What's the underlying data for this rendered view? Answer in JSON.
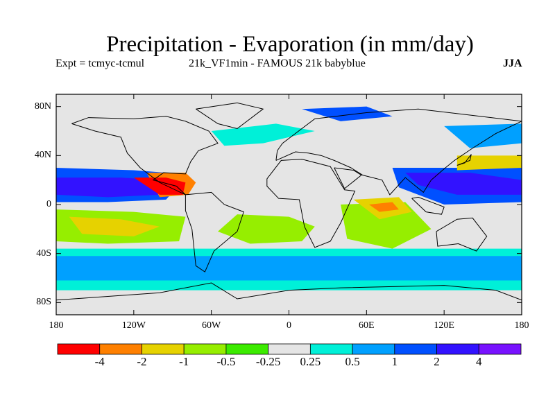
{
  "map": {
    "title": "Precipitation - Evaporation (in mm/day)",
    "subtitle_left": "Expt = tcmyc-tcmul",
    "subtitle_center": "21k_VF1min - FAMOUS 21k babyblue",
    "season": "JJA",
    "projection": "equirectangular",
    "lon_range": [
      -180,
      180
    ],
    "lat_range": [
      -90,
      90
    ],
    "lat_ticks": [
      {
        "value": 80,
        "label": "80N"
      },
      {
        "value": 40,
        "label": "40N"
      },
      {
        "value": 0,
        "label": "0"
      },
      {
        "value": -40,
        "label": "40S"
      },
      {
        "value": -80,
        "label": "80S"
      }
    ],
    "lon_ticks": [
      {
        "value": -180,
        "label": "180"
      },
      {
        "value": -120,
        "label": "120W"
      },
      {
        "value": -60,
        "label": "60W"
      },
      {
        "value": 0,
        "label": "0"
      },
      {
        "value": 60,
        "label": "60E"
      },
      {
        "value": 120,
        "label": "120E"
      },
      {
        "value": 180,
        "label": "180"
      }
    ],
    "background_color": "#e5e5e5"
  },
  "colorbar": {
    "colors": [
      "#ff0000",
      "#ff8000",
      "#e6d200",
      "#96ee00",
      "#3ceb00",
      "#e5e5e5",
      "#00f0d8",
      "#00a0ff",
      "#0050ff",
      "#3212ff",
      "#7812ff"
    ],
    "labels": [
      "-4",
      "-2",
      "-1",
      "-0.5",
      "-0.25",
      "0.25",
      "0.5",
      "1",
      "2",
      "4"
    ]
  },
  "field_regions": [
    {
      "name": "east-pacific-itcz",
      "color": "#3212ff",
      "points": [
        [
          -180,
          22
        ],
        [
          -130,
          22
        ],
        [
          -100,
          20
        ],
        [
          -90,
          14
        ],
        [
          -100,
          8
        ],
        [
          -140,
          6
        ],
        [
          -180,
          8
        ]
      ]
    },
    {
      "name": "pacific-itcz-edge",
      "color": "#0050ff",
      "points": [
        [
          -180,
          30
        ],
        [
          -120,
          28
        ],
        [
          -95,
          26
        ],
        [
          -85,
          16
        ],
        [
          -95,
          4
        ],
        [
          -140,
          2
        ],
        [
          -180,
          2
        ]
      ]
    },
    {
      "name": "central-america-dry",
      "color": "#ff0000",
      "points": [
        [
          -120,
          22
        ],
        [
          -95,
          22
        ],
        [
          -80,
          18
        ],
        [
          -82,
          8
        ],
        [
          -100,
          8
        ]
      ]
    },
    {
      "name": "caribbean-dry",
      "color": "#ff8000",
      "points": [
        [
          -110,
          26
        ],
        [
          -80,
          26
        ],
        [
          -72,
          18
        ],
        [
          -78,
          8
        ],
        [
          -100,
          6
        ]
      ]
    },
    {
      "name": "south-pacific-dry",
      "color": "#96ee00",
      "points": [
        [
          -180,
          -4
        ],
        [
          -120,
          -6
        ],
        [
          -80,
          -10
        ],
        [
          -85,
          -30
        ],
        [
          -140,
          -32
        ],
        [
          -180,
          -30
        ]
      ]
    },
    {
      "name": "south-pacific-yellow",
      "color": "#e6d200",
      "points": [
        [
          -170,
          -10
        ],
        [
          -130,
          -12
        ],
        [
          -100,
          -18
        ],
        [
          -120,
          -26
        ],
        [
          -160,
          -24
        ]
      ]
    },
    {
      "name": "south-atlantic-dry",
      "color": "#96ee00",
      "points": [
        [
          -40,
          -8
        ],
        [
          0,
          -10
        ],
        [
          20,
          -18
        ],
        [
          10,
          -30
        ],
        [
          -30,
          -32
        ],
        [
          -55,
          -22
        ]
      ]
    },
    {
      "name": "indian-ocean-dry",
      "color": "#96ee00",
      "points": [
        [
          40,
          0
        ],
        [
          90,
          2
        ],
        [
          110,
          -20
        ],
        [
          80,
          -36
        ],
        [
          45,
          -28
        ]
      ]
    },
    {
      "name": "indian-ocean-yellow",
      "color": "#e6d200",
      "points": [
        [
          50,
          4
        ],
        [
          85,
          6
        ],
        [
          95,
          -6
        ],
        [
          70,
          -12
        ]
      ]
    },
    {
      "name": "indian-ocean-orange",
      "color": "#ff8000",
      "points": [
        [
          62,
          0
        ],
        [
          80,
          2
        ],
        [
          85,
          -4
        ],
        [
          70,
          -6
        ]
      ]
    },
    {
      "name": "asian-monsoon-wet",
      "color": "#3212ff",
      "points": [
        [
          90,
          26
        ],
        [
          140,
          26
        ],
        [
          180,
          20
        ],
        [
          180,
          8
        ],
        [
          130,
          8
        ],
        [
          100,
          16
        ]
      ]
    },
    {
      "name": "asian-monsoon-edge",
      "color": "#0050ff",
      "points": [
        [
          80,
          30
        ],
        [
          180,
          30
        ],
        [
          180,
          2
        ],
        [
          120,
          0
        ],
        [
          85,
          14
        ]
      ]
    },
    {
      "name": "north-pacific-dry",
      "color": "#e6d200",
      "points": [
        [
          130,
          40
        ],
        [
          180,
          40
        ],
        [
          180,
          30
        ],
        [
          130,
          28
        ]
      ]
    },
    {
      "name": "southern-ocean-wet",
      "color": "#00a0ff",
      "points": [
        [
          -180,
          -42
        ],
        [
          180,
          -42
        ],
        [
          180,
          -62
        ],
        [
          -180,
          -62
        ]
      ]
    },
    {
      "name": "antarctic-margin-cyan",
      "color": "#00f0d8",
      "points": [
        [
          -180,
          -36
        ],
        [
          180,
          -36
        ],
        [
          180,
          -70
        ],
        [
          -180,
          -70
        ]
      ]
    },
    {
      "name": "north-atlantic-cyan",
      "color": "#00f0d8",
      "points": [
        [
          -60,
          60
        ],
        [
          -10,
          66
        ],
        [
          20,
          60
        ],
        [
          -20,
          50
        ],
        [
          -50,
          48
        ]
      ]
    },
    {
      "name": "arctic-blue",
      "color": "#0050ff",
      "points": [
        [
          10,
          78
        ],
        [
          60,
          80
        ],
        [
          80,
          72
        ],
        [
          40,
          68
        ]
      ]
    },
    {
      "name": "north-pacific-wet",
      "color": "#00a0ff",
      "points": [
        [
          120,
          64
        ],
        [
          180,
          66
        ],
        [
          180,
          50
        ],
        [
          140,
          46
        ]
      ]
    }
  ],
  "land_outlines": [
    {
      "name": "north-america",
      "points": [
        [
          -168,
          66
        ],
        [
          -155,
          71
        ],
        [
          -120,
          70
        ],
        [
          -95,
          72
        ],
        [
          -80,
          68
        ],
        [
          -62,
          60
        ],
        [
          -55,
          50
        ],
        [
          -70,
          44
        ],
        [
          -76,
          35
        ],
        [
          -80,
          25
        ],
        [
          -97,
          26
        ],
        [
          -105,
          20
        ],
        [
          -87,
          15
        ],
        [
          -80,
          8
        ],
        [
          -100,
          18
        ],
        [
          -115,
          30
        ],
        [
          -125,
          42
        ],
        [
          -130,
          55
        ],
        [
          -150,
          60
        ],
        [
          -168,
          66
        ]
      ]
    },
    {
      "name": "greenland",
      "points": [
        [
          -72,
          78
        ],
        [
          -40,
          83
        ],
        [
          -20,
          78
        ],
        [
          -40,
          62
        ],
        [
          -55,
          66
        ],
        [
          -72,
          78
        ]
      ]
    },
    {
      "name": "south-america",
      "points": [
        [
          -80,
          8
        ],
        [
          -60,
          10
        ],
        [
          -50,
          0
        ],
        [
          -35,
          -6
        ],
        [
          -40,
          -22
        ],
        [
          -58,
          -38
        ],
        [
          -65,
          -55
        ],
        [
          -72,
          -50
        ],
        [
          -75,
          -20
        ],
        [
          -80,
          -5
        ],
        [
          -80,
          8
        ]
      ]
    },
    {
      "name": "africa",
      "points": [
        [
          -17,
          21
        ],
        [
          -6,
          36
        ],
        [
          10,
          37
        ],
        [
          32,
          31
        ],
        [
          43,
          12
        ],
        [
          51,
          11
        ],
        [
          40,
          -15
        ],
        [
          32,
          -30
        ],
        [
          20,
          -35
        ],
        [
          12,
          -18
        ],
        [
          8,
          4
        ],
        [
          -8,
          5
        ],
        [
          -17,
          15
        ],
        [
          -17,
          21
        ]
      ]
    },
    {
      "name": "eurasia",
      "points": [
        [
          -10,
          36
        ],
        [
          -9,
          44
        ],
        [
          -5,
          50
        ],
        [
          5,
          58
        ],
        [
          20,
          70
        ],
        [
          60,
          75
        ],
        [
          100,
          78
        ],
        [
          140,
          73
        ],
        [
          180,
          68
        ],
        [
          160,
          58
        ],
        [
          142,
          46
        ],
        [
          128,
          36
        ],
        [
          121,
          30
        ],
        [
          110,
          20
        ],
        [
          104,
          10
        ],
        [
          98,
          15
        ],
        [
          90,
          22
        ],
        [
          78,
          8
        ],
        [
          72,
          20
        ],
        [
          57,
          24
        ],
        [
          48,
          30
        ],
        [
          35,
          36
        ],
        [
          25,
          40
        ],
        [
          15,
          42
        ],
        [
          5,
          43
        ],
        [
          -10,
          36
        ]
      ]
    },
    {
      "name": "arabia",
      "points": [
        [
          35,
          30
        ],
        [
          43,
          13
        ],
        [
          56,
          24
        ],
        [
          50,
          28
        ],
        [
          35,
          30
        ]
      ]
    },
    {
      "name": "australia",
      "points": [
        [
          114,
          -22
        ],
        [
          130,
          -12
        ],
        [
          142,
          -11
        ],
        [
          153,
          -26
        ],
        [
          145,
          -38
        ],
        [
          131,
          -32
        ],
        [
          115,
          -34
        ],
        [
          114,
          -22
        ]
      ]
    },
    {
      "name": "antarctica",
      "points": [
        [
          -180,
          -78
        ],
        [
          -140,
          -75
        ],
        [
          -100,
          -72
        ],
        [
          -60,
          -64
        ],
        [
          -40,
          -77
        ],
        [
          0,
          -70
        ],
        [
          40,
          -68
        ],
        [
          80,
          -67
        ],
        [
          120,
          -66
        ],
        [
          160,
          -70
        ],
        [
          180,
          -78
        ]
      ]
    },
    {
      "name": "indonesia",
      "points": [
        [
          95,
          5
        ],
        [
          106,
          -6
        ],
        [
          118,
          -8
        ],
        [
          120,
          -2
        ],
        [
          110,
          2
        ],
        [
          100,
          6
        ],
        [
          95,
          5
        ]
      ]
    },
    {
      "name": "japan",
      "points": [
        [
          130,
          32
        ],
        [
          136,
          34
        ],
        [
          141,
          41
        ],
        [
          140,
          36
        ],
        [
          130,
          32
        ]
      ]
    }
  ]
}
